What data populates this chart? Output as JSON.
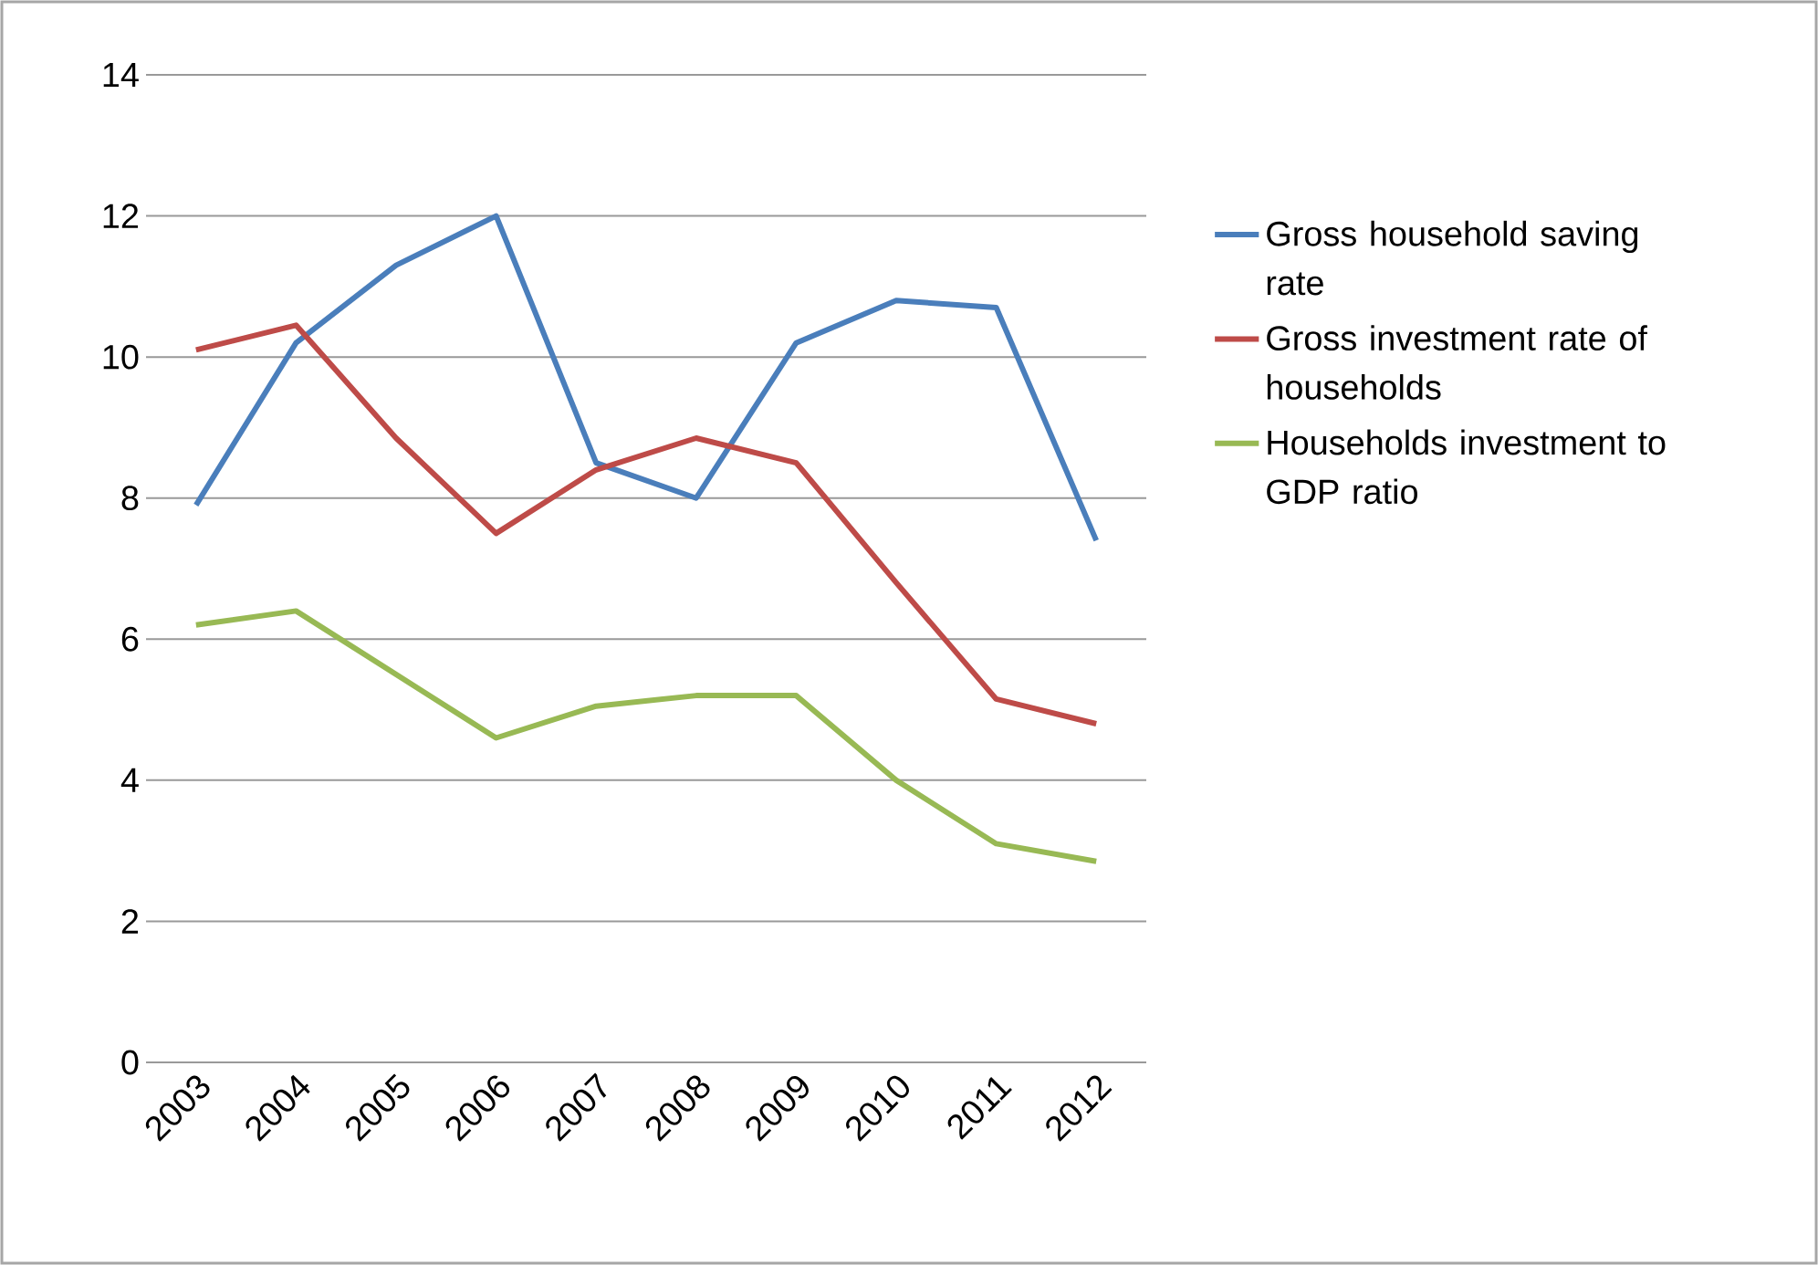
{
  "chart_data": {
    "type": "line",
    "categories": [
      "2003",
      "2004",
      "2005",
      "2006",
      "2007",
      "2008",
      "2009",
      "2010",
      "2011",
      "2012"
    ],
    "series": [
      {
        "name": "Gross household saving rate",
        "color": "#4a7ebb",
        "values": [
          7.9,
          10.2,
          11.3,
          12.0,
          8.5,
          8.0,
          10.2,
          10.8,
          10.7,
          7.4
        ]
      },
      {
        "name": "Gross investment rate of households",
        "color": "#be4b48",
        "values": [
          10.1,
          10.45,
          8.85,
          7.5,
          8.4,
          8.85,
          8.5,
          6.8,
          5.15,
          4.8
        ]
      },
      {
        "name": "Households investment to GDP ratio",
        "color": "#98b954",
        "values": [
          6.2,
          6.4,
          5.5,
          4.6,
          5.05,
          5.2,
          5.2,
          4.0,
          3.1,
          2.85
        ]
      }
    ],
    "ylim": [
      0,
      14
    ],
    "yticks": [
      0,
      2,
      4,
      6,
      8,
      10,
      12,
      14
    ],
    "grid": "y",
    "legend": "right",
    "marker": "none",
    "line_style": "solid"
  }
}
